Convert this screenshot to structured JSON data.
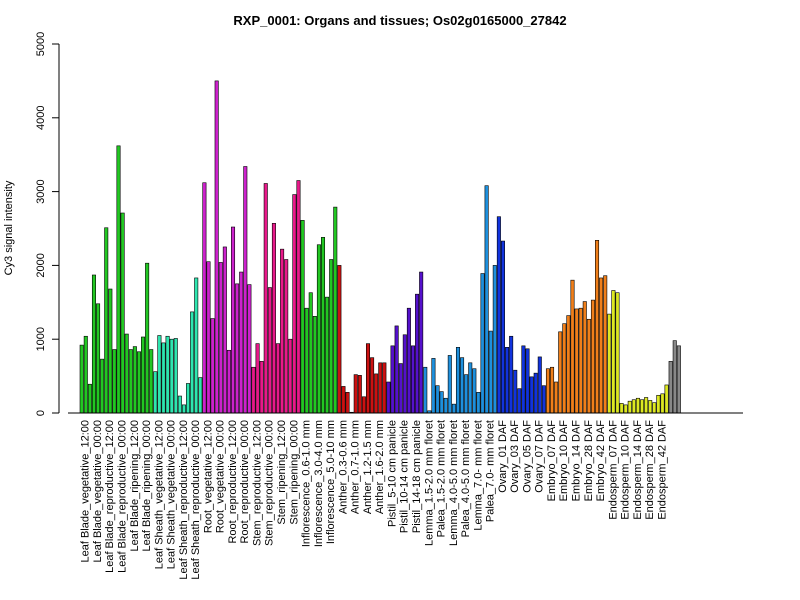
{
  "chart_data": {
    "type": "bar",
    "title": "RXP_0001: Organs and tissues; Os02g0165000_27842",
    "xlabel": "",
    "ylabel": "Cy3 signal intensity",
    "ylim": [
      0,
      5000
    ],
    "yticks": [
      0,
      1000,
      2000,
      3000,
      4000,
      5000
    ],
    "grid": false,
    "legend": "none",
    "tick_labels": [
      "Leaf Blade_vegetative_12:00",
      "Leaf Blade_vegetative_00:00",
      "Leaf Blade_reproductive_12:00",
      "Leaf Blade_reproductive_00:00",
      "Leaf Blade_ripening_12:00",
      "Leaf Blade_ripening_00:00",
      "Leaf Sheath_vegetative_12:00",
      "Leaf Sheath_vegetative_00:00",
      "Leaf Sheath_reproductive_12:00",
      "Leaf Sheath_reproductive_00:00",
      "Root_vegetative_12:00",
      "Root_vegetative_00:00",
      "Root_reproductive_12:00",
      "Root_reproductive_00:00",
      "Stem_reproductive_12:00",
      "Stem_reproductive_00:00",
      "Stem_ripening_12:00",
      "Stem_ripening_00:00",
      "Inflorescence_0.6-1.0 mm",
      "Inflorescence_3.0-4.0 mm",
      "Inflorescence_5.0-10 mm",
      "Anther_0.3-0.6 mm",
      "Anther_0.7-1.0 mm",
      "Anther_1.2-1.5 mm",
      "Anther_1.6-2.0 mm",
      "Pistil_5-10 cm panicle",
      "Pistil_10-14 cm panicle",
      "Pistil_14-18 cm panicle",
      "Lemma_1.5-2.0 mm floret",
      "Palea_1.5-2.0 mm floret",
      "Lemma_4.0-5.0 mm floret",
      "Palea_4.0-5.0 mm floret",
      "Lemma_7.0- mm floret",
      "Palea_7.0- mm floret",
      "Ovary_01 DAF",
      "Ovary_03 DAF",
      "Ovary_05 DAF",
      "Ovary_07 DAF",
      "Embryo_07 DAF",
      "Embryo_10 DAF",
      "Embryo_14 DAF",
      "Embryo_28 DAF",
      "Embryo_42 DAF",
      "Endosperm_07 DAF",
      "Endosperm_10 DAF",
      "Endosperm_14 DAF",
      "Endosperm_28 DAF",
      "Endosperm_42 DAF"
    ],
    "groups_per_label": 3,
    "values": [
      920,
      1040,
      390,
      1870,
      1480,
      730,
      2510,
      1680,
      860,
      3620,
      2710,
      1070,
      860,
      900,
      830,
      1030,
      2030,
      860,
      560,
      1050,
      950,
      1040,
      1000,
      1010,
      230,
      110,
      400,
      1370,
      1830,
      480,
      3120,
      2050,
      1280,
      4500,
      2040,
      2250,
      850,
      2520,
      1750,
      1910,
      3340,
      1740,
      620,
      940,
      700,
      3110,
      1700,
      2570,
      940,
      2220,
      2080,
      1000,
      2960,
      3150,
      2610,
      1420,
      1630,
      1310,
      2280,
      2380,
      1570,
      2080,
      2790,
      2000,
      360,
      280,
      10,
      520,
      510,
      220,
      940,
      750,
      530,
      680,
      680,
      420,
      910,
      1180,
      670,
      1060,
      1420,
      910,
      1610,
      1910,
      620,
      30,
      740,
      370,
      290,
      200,
      780,
      120,
      890,
      750,
      520,
      680,
      600,
      280,
      1890,
      3080,
      1110,
      2000,
      2660,
      2330,
      890,
      1040,
      580,
      330,
      910,
      870,
      490,
      540,
      760,
      370,
      600,
      620,
      420,
      1100,
      1210,
      1320,
      1800,
      1410,
      1420,
      1510,
      1270,
      1530,
      2340,
      1830,
      1860,
      1340,
      1660,
      1630,
      130,
      110,
      160,
      180,
      200,
      180,
      210,
      170,
      140,
      240,
      260,
      380,
      700,
      980,
      910
    ],
    "colors": {
      "green": "#22c722",
      "aquamarine": "#2ee6b0",
      "magenta": "#cc22cc",
      "pink": "#e8198a",
      "red": "#cc1111",
      "indigo": "#5511cc",
      "skyblue": "#1e90dd",
      "blue": "#1133dd",
      "orange": "#f07f1a",
      "yellow": "#dde822"
    }
  }
}
